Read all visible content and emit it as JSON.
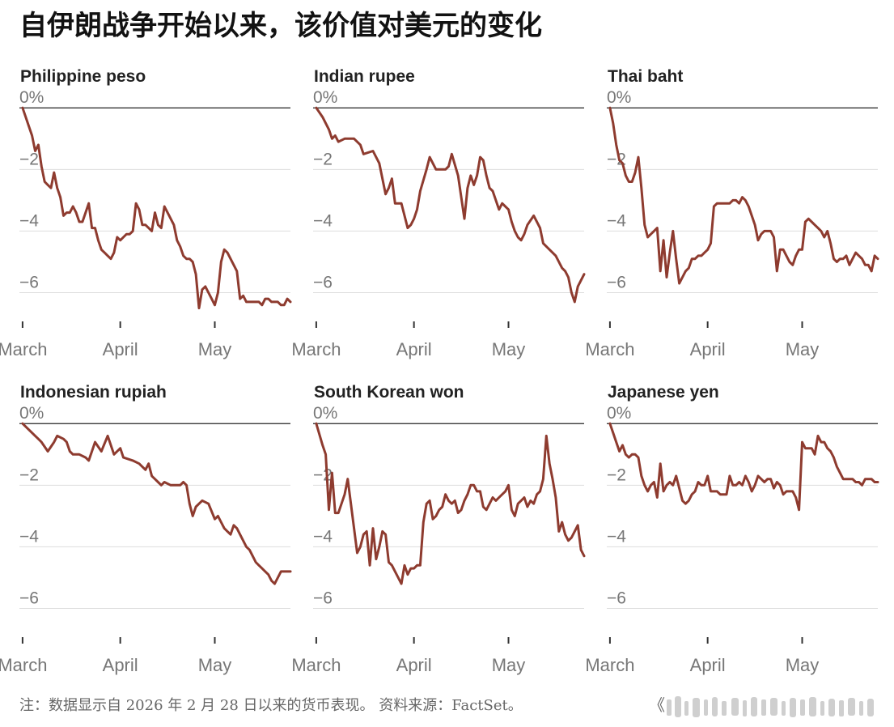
{
  "title": "自伊朗战争开始以来，该价值对美元的变化",
  "footer": "注：数据显示自 2026 年 2 月 28 日以来的货币表现。 资料来源：FactSet。",
  "footer_mark": "《",
  "colors": {
    "line": "#8e3b2f",
    "grid": "#dddddd",
    "zero": "#222222",
    "label": "#777777"
  },
  "chart_data": [
    {
      "type": "line",
      "title": "Philippine peso",
      "ylim": [
        -7.3,
        0.4
      ],
      "yticks": [
        0,
        -2,
        -4,
        -6
      ],
      "ytick_labels": [
        "0%",
        "−2",
        "−4",
        "−6"
      ],
      "xlim": [
        0,
        86
      ],
      "xticks": [
        1,
        32,
        62
      ],
      "xtick_labels": [
        "March",
        "April",
        "May"
      ],
      "x": [
        1,
        2,
        3,
        4,
        5,
        6,
        7,
        8,
        9,
        10,
        11,
        12,
        13,
        14,
        15,
        16,
        17,
        18,
        19,
        20,
        21,
        22,
        23,
        24,
        25,
        26,
        27,
        28,
        29,
        30,
        31,
        32,
        33,
        34,
        35,
        36,
        37,
        38,
        39,
        40,
        41,
        42,
        43,
        44,
        45,
        46,
        47,
        48,
        49,
        50,
        51,
        52,
        53,
        54,
        55,
        56,
        57,
        58,
        59,
        60,
        61,
        62,
        63,
        64,
        65,
        66,
        67,
        68,
        69,
        70,
        71,
        72,
        73,
        74,
        75,
        76,
        77,
        78,
        79,
        80,
        81,
        82,
        83,
        84,
        85,
        86
      ],
      "y": [
        0.0,
        -0.3,
        -0.6,
        -0.9,
        -1.4,
        -1.2,
        -1.9,
        -2.4,
        -2.5,
        -2.6,
        -2.1,
        -2.6,
        -2.9,
        -3.5,
        -3.4,
        -3.4,
        -3.2,
        -3.4,
        -3.7,
        -3.7,
        -3.4,
        -3.1,
        -3.9,
        -3.9,
        -4.3,
        -4.6,
        -4.7,
        -4.8,
        -4.9,
        -4.7,
        -4.2,
        -4.3,
        -4.2,
        -4.1,
        -4.1,
        -4.0,
        -3.1,
        -3.3,
        -3.8,
        -3.8,
        -3.9,
        -4.0,
        -3.4,
        -3.8,
        -3.9,
        -3.2,
        -3.4,
        -3.6,
        -3.8,
        -4.3,
        -4.5,
        -4.8,
        -4.9,
        -4.9,
        -5.0,
        -5.4,
        -6.5,
        -5.9,
        -5.8,
        -6.0,
        -6.2,
        -6.4,
        -6.0,
        -5.0,
        -4.6,
        -4.7,
        -4.9,
        -5.1,
        -5.3,
        -6.2,
        -6.1,
        -6.3,
        -6.3,
        -6.3,
        -6.3,
        -6.3,
        -6.4,
        -6.2,
        -6.2,
        -6.3,
        -6.3,
        -6.3,
        -6.4,
        -6.4,
        -6.2,
        -6.3
      ]
    },
    {
      "type": "line",
      "title": "Indian rupee",
      "ylim": [
        -7.3,
        0.4
      ],
      "yticks": [
        0,
        -2,
        -4,
        -6
      ],
      "ytick_labels": [
        "0%",
        "−2",
        "−4",
        "−6"
      ],
      "xlim": [
        0,
        86
      ],
      "xticks": [
        1,
        32,
        62
      ],
      "xtick_labels": [
        "March",
        "April",
        "May"
      ],
      "x": [
        1,
        3,
        5,
        6,
        7,
        8,
        10,
        13,
        15,
        16,
        19,
        21,
        23,
        24,
        25,
        26,
        28,
        29,
        30,
        31,
        32,
        33,
        34,
        36,
        37,
        38,
        39,
        40,
        42,
        43,
        44,
        46,
        48,
        49,
        50,
        51,
        52,
        53,
        54,
        55,
        56,
        57,
        59,
        60,
        61,
        62,
        63,
        64,
        65,
        66,
        67,
        68,
        70,
        72,
        73,
        75,
        77,
        78,
        79,
        80,
        81,
        82,
        83,
        84,
        85,
        86
      ],
      "y": [
        0.0,
        -0.3,
        -0.7,
        -1.0,
        -0.9,
        -1.1,
        -1.0,
        -1.0,
        -1.2,
        -1.5,
        -1.4,
        -1.8,
        -2.8,
        -2.6,
        -2.3,
        -3.1,
        -3.1,
        -3.5,
        -3.9,
        -3.8,
        -3.6,
        -3.3,
        -2.7,
        -2.0,
        -1.6,
        -1.8,
        -2.0,
        -2.0,
        -2.0,
        -1.9,
        -1.5,
        -2.2,
        -3.6,
        -2.6,
        -2.2,
        -2.5,
        -2.2,
        -1.6,
        -1.7,
        -2.2,
        -2.6,
        -2.7,
        -3.3,
        -3.1,
        -3.2,
        -3.3,
        -3.7,
        -4.0,
        -4.2,
        -4.3,
        -4.1,
        -3.8,
        -3.5,
        -3.9,
        -4.4,
        -4.6,
        -4.8,
        -5.0,
        -5.2,
        -5.3,
        -5.5,
        -6.0,
        -6.3,
        -5.8,
        -5.6,
        -5.4
      ]
    },
    {
      "type": "line",
      "title": "Thai baht",
      "ylim": [
        -7.3,
        0.4
      ],
      "yticks": [
        0,
        -2,
        -4,
        -6
      ],
      "ytick_labels": [
        "0%",
        "−2",
        "−4",
        "−6"
      ],
      "xlim": [
        0,
        86
      ],
      "xticks": [
        1,
        32,
        62
      ],
      "xtick_labels": [
        "March",
        "April",
        "May"
      ],
      "x": [
        1,
        2,
        3,
        4,
        5,
        6,
        7,
        8,
        9,
        10,
        11,
        12,
        13,
        14,
        15,
        16,
        17,
        18,
        19,
        20,
        21,
        22,
        23,
        24,
        25,
        26,
        27,
        28,
        29,
        30,
        31,
        32,
        33,
        34,
        35,
        36,
        37,
        38,
        39,
        40,
        41,
        42,
        43,
        44,
        45,
        46,
        47,
        48,
        49,
        50,
        51,
        52,
        53,
        54,
        55,
        56,
        57,
        58,
        59,
        60,
        61,
        62,
        63,
        64,
        65,
        66,
        67,
        68,
        69,
        70,
        71,
        72,
        73,
        74,
        75,
        76,
        77,
        78,
        79,
        80,
        81,
        82,
        83,
        84,
        85,
        86
      ],
      "y": [
        0.0,
        -0.5,
        -1.2,
        -1.7,
        -1.8,
        -2.2,
        -2.4,
        -2.4,
        -2.1,
        -1.6,
        -2.6,
        -3.8,
        -4.2,
        -4.1,
        -4.0,
        -3.9,
        -5.3,
        -4.3,
        -5.5,
        -4.7,
        -4.0,
        -4.9,
        -5.7,
        -5.5,
        -5.3,
        -5.2,
        -4.9,
        -4.9,
        -4.8,
        -4.8,
        -4.7,
        -4.6,
        -4.4,
        -3.2,
        -3.1,
        -3.1,
        -3.1,
        -3.1,
        -3.1,
        -3.0,
        -3.0,
        -3.1,
        -2.9,
        -3.0,
        -3.2,
        -3.5,
        -3.8,
        -4.3,
        -4.1,
        -4.0,
        -4.0,
        -4.0,
        -4.2,
        -5.3,
        -4.6,
        -4.6,
        -4.8,
        -5.0,
        -5.1,
        -4.8,
        -4.6,
        -4.6,
        -3.7,
        -3.6,
        -3.7,
        -3.8,
        -3.9,
        -4.0,
        -4.2,
        -4.0,
        -4.4,
        -4.9,
        -5.0,
        -4.9,
        -4.9,
        -4.8,
        -5.1,
        -4.9,
        -4.7,
        -4.8,
        -4.9,
        -5.1,
        -5.1,
        -5.3,
        -4.8,
        -4.9
      ]
    },
    {
      "type": "line",
      "title": "Indonesian rupiah",
      "ylim": [
        -7.3,
        0.4
      ],
      "yticks": [
        0,
        -2,
        -4,
        -6
      ],
      "ytick_labels": [
        "0%",
        "−2",
        "−4",
        "−6"
      ],
      "xlim": [
        0,
        86
      ],
      "xticks": [
        1,
        32,
        62
      ],
      "xtick_labels": [
        "March",
        "April",
        "May"
      ],
      "x": [
        1,
        3,
        5,
        6,
        7,
        9,
        11,
        12,
        14,
        15,
        16,
        17,
        18,
        19,
        21,
        22,
        24,
        26,
        28,
        30,
        32,
        33,
        36,
        38,
        40,
        41,
        42,
        43,
        44,
        45,
        46,
        48,
        50,
        51,
        52,
        53,
        54,
        55,
        56,
        57,
        58,
        60,
        62,
        63,
        64,
        65,
        66,
        67,
        68,
        69,
        70,
        71,
        72,
        73,
        74,
        75,
        76,
        77,
        78,
        79,
        80,
        81,
        82,
        83,
        84,
        85,
        86
      ],
      "y": [
        0.0,
        -0.2,
        -0.4,
        -0.5,
        -0.6,
        -0.9,
        -0.6,
        -0.4,
        -0.5,
        -0.6,
        -0.9,
        -1.0,
        -1.0,
        -1.0,
        -1.1,
        -1.2,
        -0.6,
        -0.9,
        -0.4,
        -1.0,
        -0.8,
        -1.1,
        -1.2,
        -1.3,
        -1.5,
        -1.3,
        -1.7,
        -1.8,
        -1.9,
        -2.0,
        -1.9,
        -2.0,
        -2.0,
        -2.0,
        -1.9,
        -2.0,
        -2.6,
        -3.0,
        -2.7,
        -2.6,
        -2.5,
        -2.6,
        -3.1,
        -3.0,
        -3.2,
        -3.4,
        -3.5,
        -3.6,
        -3.3,
        -3.4,
        -3.6,
        -3.8,
        -4.0,
        -4.1,
        -4.3,
        -4.5,
        -4.6,
        -4.7,
        -4.8,
        -4.9,
        -5.1,
        -5.2,
        -5.0,
        -4.8,
        -4.8,
        -4.8,
        -4.8
      ]
    },
    {
      "type": "line",
      "title": "South Korean won",
      "ylim": [
        -7.3,
        0.4
      ],
      "yticks": [
        0,
        -2,
        -4,
        -6
      ],
      "ytick_labels": [
        "0%",
        "−2",
        "−4",
        "−6"
      ],
      "xlim": [
        0,
        86
      ],
      "xticks": [
        1,
        32,
        62
      ],
      "xtick_labels": [
        "March",
        "April",
        "May"
      ],
      "x": [
        1,
        3,
        4,
        5,
        6,
        7,
        8,
        9,
        10,
        11,
        12,
        14,
        15,
        16,
        17,
        18,
        19,
        20,
        21,
        22,
        23,
        24,
        25,
        26,
        27,
        28,
        29,
        30,
        31,
        32,
        33,
        34,
        35,
        36,
        37,
        38,
        39,
        40,
        41,
        42,
        43,
        44,
        45,
        46,
        47,
        48,
        49,
        50,
        51,
        52,
        53,
        54,
        55,
        56,
        57,
        58,
        59,
        60,
        61,
        62,
        63,
        64,
        65,
        66,
        67,
        68,
        69,
        70,
        71,
        72,
        73,
        74,
        75,
        76,
        77,
        78,
        79,
        80,
        81,
        82,
        83,
        84,
        85,
        86
      ],
      "y": [
        0.0,
        -0.7,
        -1.0,
        -2.8,
        -1.6,
        -2.9,
        -2.9,
        -2.6,
        -2.3,
        -1.8,
        -2.6,
        -4.2,
        -4.0,
        -3.6,
        -3.5,
        -4.6,
        -3.4,
        -4.4,
        -4.0,
        -3.5,
        -3.6,
        -4.5,
        -4.6,
        -4.8,
        -5.0,
        -5.2,
        -4.6,
        -4.9,
        -4.7,
        -4.7,
        -4.6,
        -4.6,
        -3.2,
        -2.6,
        -2.5,
        -3.1,
        -3.0,
        -2.8,
        -2.7,
        -2.3,
        -2.5,
        -2.6,
        -2.5,
        -2.9,
        -2.8,
        -2.5,
        -2.3,
        -2.0,
        -2.0,
        -2.2,
        -2.2,
        -2.7,
        -2.8,
        -2.6,
        -2.4,
        -2.5,
        -2.4,
        -2.3,
        -2.2,
        -2.0,
        -2.8,
        -3.0,
        -2.6,
        -2.5,
        -2.4,
        -2.7,
        -2.5,
        -2.6,
        -2.3,
        -2.2,
        -1.8,
        -0.4,
        -1.3,
        -1.8,
        -2.4,
        -3.5,
        -3.2,
        -3.6,
        -3.8,
        -3.7,
        -3.5,
        -3.3,
        -4.1,
        -4.3
      ]
    },
    {
      "type": "line",
      "title": "Japanese yen",
      "ylim": [
        -7.3,
        0.4
      ],
      "yticks": [
        0,
        -2,
        -4,
        -6
      ],
      "ytick_labels": [
        "0%",
        "−2",
        "−4",
        "−6"
      ],
      "xlim": [
        0,
        86
      ],
      "xticks": [
        1,
        32,
        62
      ],
      "xtick_labels": [
        "March",
        "April",
        "May"
      ],
      "x": [
        1,
        2,
        3,
        4,
        5,
        6,
        7,
        8,
        9,
        10,
        11,
        12,
        13,
        14,
        15,
        16,
        17,
        18,
        19,
        20,
        21,
        22,
        23,
        24,
        25,
        26,
        27,
        28,
        29,
        30,
        31,
        32,
        33,
        34,
        35,
        36,
        37,
        38,
        39,
        40,
        41,
        42,
        43,
        44,
        45,
        46,
        47,
        48,
        49,
        50,
        51,
        52,
        53,
        54,
        55,
        56,
        57,
        58,
        59,
        60,
        61,
        62,
        63,
        64,
        65,
        66,
        67,
        68,
        69,
        70,
        71,
        72,
        73,
        74,
        75,
        76,
        77,
        78,
        79,
        80,
        81,
        82,
        83,
        84,
        85,
        86
      ],
      "y": [
        0.0,
        -0.3,
        -0.6,
        -0.9,
        -0.7,
        -1.0,
        -1.1,
        -1.0,
        -1.0,
        -1.1,
        -1.7,
        -2.0,
        -2.2,
        -2.0,
        -1.9,
        -2.4,
        -1.3,
        -2.2,
        -2.0,
        -1.9,
        -2.0,
        -1.7,
        -2.1,
        -2.5,
        -2.6,
        -2.5,
        -2.3,
        -2.2,
        -1.9,
        -2.0,
        -2.0,
        -1.7,
        -2.2,
        -2.2,
        -2.2,
        -2.3,
        -2.3,
        -2.3,
        -1.7,
        -2.0,
        -2.0,
        -1.9,
        -2.0,
        -1.7,
        -1.9,
        -2.2,
        -2.0,
        -1.7,
        -1.8,
        -1.9,
        -1.8,
        -1.8,
        -2.1,
        -1.9,
        -2.0,
        -2.3,
        -2.2,
        -2.2,
        -2.2,
        -2.4,
        -2.8,
        -0.6,
        -0.8,
        -0.8,
        -0.8,
        -1.0,
        -0.4,
        -0.6,
        -0.6,
        -0.8,
        -0.9,
        -1.1,
        -1.4,
        -1.6,
        -1.8,
        -1.8,
        -1.8,
        -1.8,
        -1.9,
        -1.9,
        -2.0,
        -1.8,
        -1.8,
        -1.8,
        -1.9,
        -1.9
      ]
    }
  ]
}
